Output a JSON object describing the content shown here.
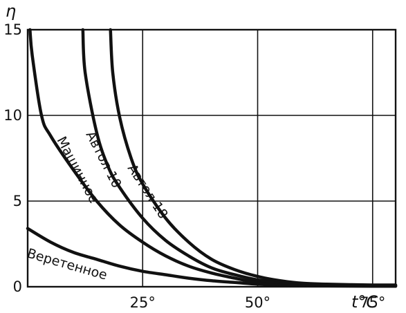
{
  "chart_data": {
    "type": "line",
    "ylabel": "η",
    "xlabel": "t°C",
    "xlim": [
      0,
      80
    ],
    "ylim": [
      0,
      15
    ],
    "grid": true,
    "x_ticks": [
      {
        "value": 25,
        "label": "25°"
      },
      {
        "value": 50,
        "label": "50°"
      },
      {
        "value": 75,
        "label": "75°"
      }
    ],
    "y_ticks": [
      {
        "value": 0,
        "label": "0"
      },
      {
        "value": 5,
        "label": "5"
      },
      {
        "value": 10,
        "label": "10"
      },
      {
        "value": 15,
        "label": "15"
      }
    ],
    "series": [
      {
        "name": "Веретенное",
        "x": [
          0,
          5,
          10,
          15,
          20,
          25,
          30,
          35,
          40,
          45,
          50,
          55,
          60,
          65,
          70,
          75,
          80
        ],
        "y": [
          3.4,
          2.6,
          2.0,
          1.6,
          1.2,
          0.9,
          0.7,
          0.5,
          0.35,
          0.25,
          0.15,
          0.1,
          0.07,
          0.05,
          0.04,
          0.03,
          0.03
        ]
      },
      {
        "name": "Машинное",
        "x": [
          0.5,
          1,
          3,
          5,
          10,
          15,
          20,
          25,
          30,
          35,
          40,
          45,
          50,
          55,
          60,
          65,
          70,
          75,
          80
        ],
        "y": [
          15,
          13.5,
          10,
          8.8,
          6.8,
          5.0,
          3.6,
          2.6,
          1.8,
          1.2,
          0.8,
          0.5,
          0.25,
          0.15,
          0.1,
          0.08,
          0.06,
          0.05,
          0.05
        ]
      },
      {
        "name": "Автол 10",
        "x": [
          12,
          12.5,
          15,
          17.5,
          20,
          25,
          30,
          35,
          40,
          45,
          50,
          55,
          60,
          65,
          70,
          75,
          80
        ],
        "y": [
          15,
          12.5,
          9.0,
          7.0,
          5.8,
          4.0,
          2.7,
          1.8,
          1.1,
          0.7,
          0.4,
          0.25,
          0.15,
          0.1,
          0.08,
          0.07,
          0.06
        ]
      },
      {
        "name": "Автол 18",
        "x": [
          18,
          18.5,
          20,
          22.5,
          25,
          30,
          35,
          40,
          45,
          50,
          55,
          60,
          65,
          70,
          75,
          80
        ],
        "y": [
          15,
          12.5,
          9.9,
          7.5,
          6.0,
          4.0,
          2.6,
          1.6,
          1.0,
          0.6,
          0.35,
          0.2,
          0.15,
          0.12,
          0.1,
          0.1
        ]
      }
    ]
  }
}
